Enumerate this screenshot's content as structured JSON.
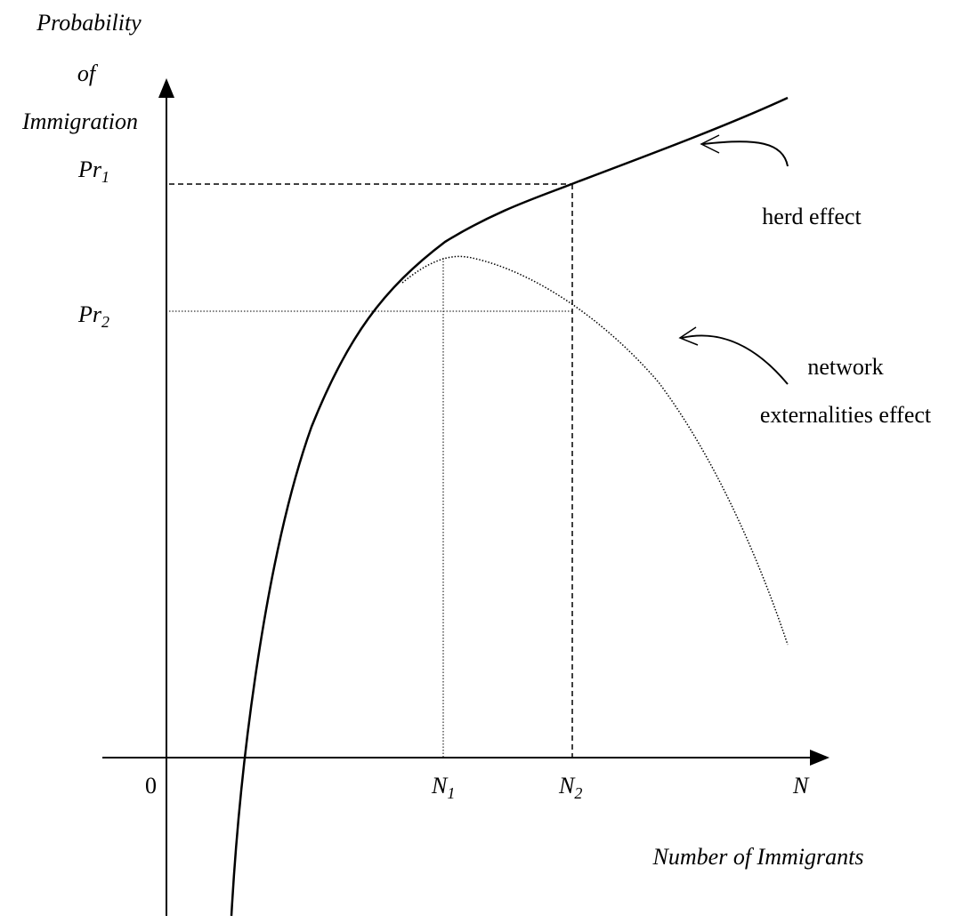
{
  "y_axis_label": [
    "Probability",
    "of",
    "Immigration"
  ],
  "x_axis_label": "Number of Immigrants",
  "origin": "0",
  "y_marks": [
    {
      "base": "Pr",
      "sub": "1"
    },
    {
      "base": "Pr",
      "sub": "2"
    }
  ],
  "x_marks": [
    {
      "base": "N",
      "sub": "1"
    },
    {
      "base": "N",
      "sub": "2"
    }
  ],
  "x_end": "N",
  "curves": {
    "herd": [
      "herd effect"
    ],
    "network": [
      "network",
      "externalities effect"
    ]
  }
}
